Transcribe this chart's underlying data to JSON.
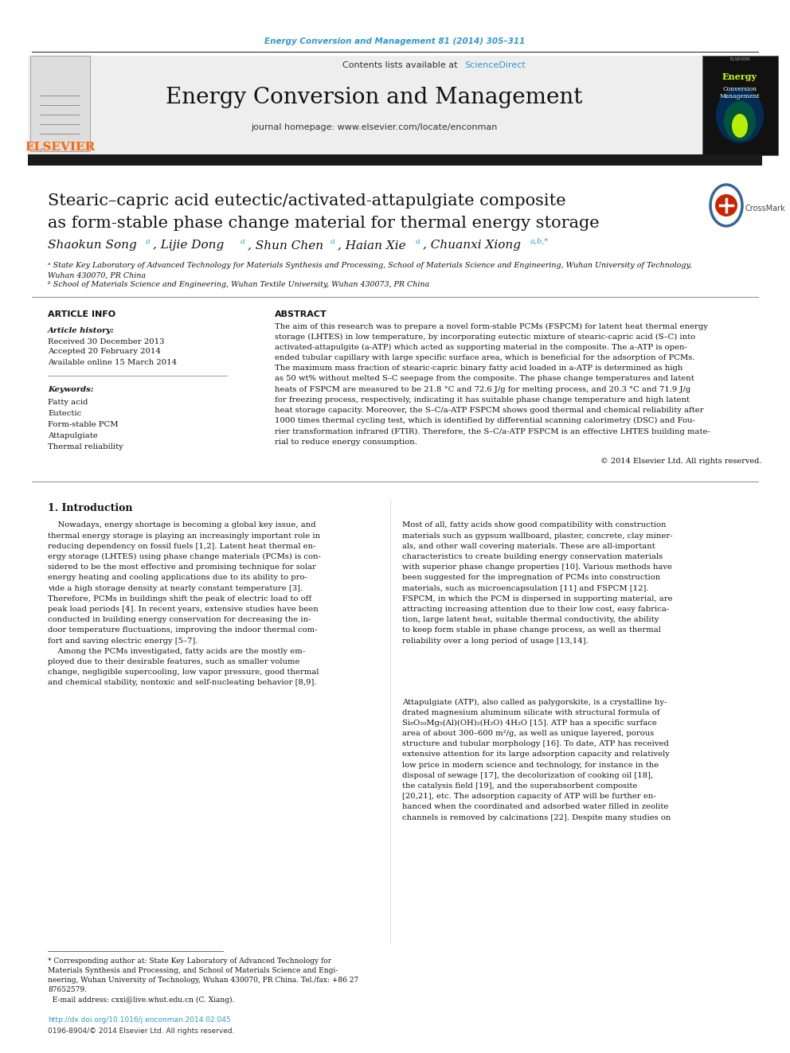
{
  "journal_ref": "Energy Conversion and Management 81 (2014) 305–311",
  "journal_ref_color": "#3399CC",
  "journal_name": "Energy Conversion and Management",
  "contents_line": "Contents lists available at ScienceDirect",
  "sciencedirect_color": "#3399CC",
  "homepage_line": "journal homepage: www.elsevier.com/locate/enconman",
  "elsevier_color": "#FF6600",
  "elsevier_text": "ELSEVIER",
  "paper_title_line1": "Stearic–capric acid eutectic/activated-attapulgiate composite",
  "paper_title_line2": "as form-stable phase change material for thermal energy storage",
  "affiliation_a": "ᵃ State Key Laboratory of Advanced Technology for Materials Synthesis and Processing, School of Materials Science and Engineering, Wuhan University of Technology,",
  "affiliation_a2": "Wuhan 430070, PR China",
  "affiliation_b": "ᵇ School of Materials Science and Engineering, Wuhan Textile University, Wuhan 430073, PR China",
  "article_info_header": "ARTICLE INFO",
  "abstract_header": "ABSTRACT",
  "article_history_label": "Article history:",
  "received": "Received 30 December 2013",
  "accepted": "Accepted 20 February 2014",
  "available": "Available online 15 March 2014",
  "keywords_label": "Keywords:",
  "keywords": [
    "Fatty acid",
    "Eutectic",
    "Form-stable PCM",
    "Attapulgiate",
    "Thermal reliability"
  ],
  "copyright": "© 2014 Elsevier Ltd. All rights reserved.",
  "intro_header": "1. Introduction",
  "doi_text": "http://dx.doi.org/10.1016/j.enconman.2014.02.045",
  "issn_text": "0196-8904/© 2014 Elsevier Ltd. All rights reserved.",
  "bg_color": "#FFFFFF",
  "header_bg": "#EEEEEE",
  "black_bar_color": "#1A1A1A",
  "text_color": "#000000",
  "link_color": "#3399CC"
}
